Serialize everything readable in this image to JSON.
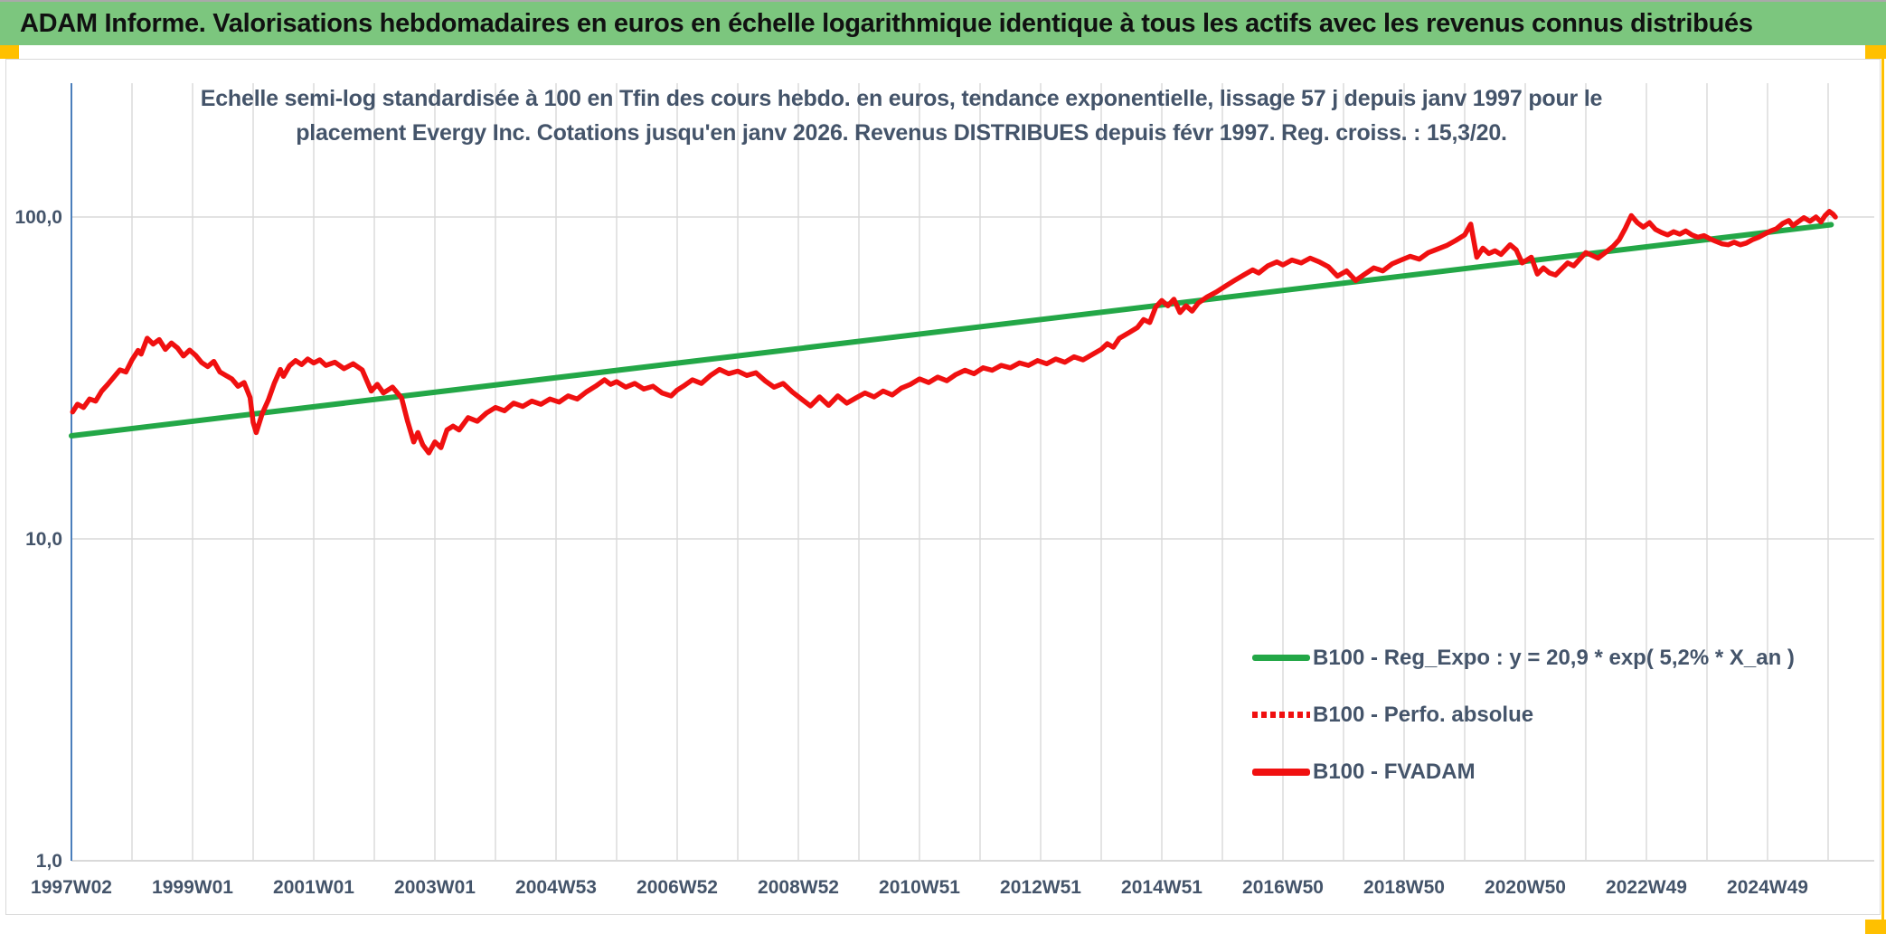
{
  "header": {
    "title": "ADAM Informe. Valorisations hebdomadaires en euros en échelle logarithmique identique à tous les actifs avec les revenus connus distribués",
    "bg_color": "#7cc67e",
    "accent_color": "#FFC000"
  },
  "chart": {
    "title_line1": "Echelle semi-log standardisée à 100 en Tfin des cours hebdo. en euros, tendance exponentielle, lissage 57 j depuis janv 1997 pour le",
    "title_line2": "placement Evergy Inc. Cotations jusqu'en janv 2026. Revenus DISTRIBUES depuis févr 1997. Reg. croiss. : 15,3/20.",
    "text_color": "#44546A",
    "axis_line_color": "#4a7ebb",
    "gridline_color": "#dcdcdc"
  },
  "legend": [
    {
      "label": "B100 - Reg_Expo : y = 20,9 * exp( 5,2% *  X_an )",
      "swatch": "green-solid"
    },
    {
      "label": "B100 - Perfo. absolue",
      "swatch": "red-dotted"
    },
    {
      "label": "B100 - FVADAM",
      "swatch": "red-solid"
    }
  ],
  "chart_data": {
    "type": "line",
    "title": "Echelle semi-log standardisée à 100 en Tfin des cours hebdo. en euros, tendance exponentielle, lissage 57 j depuis janv 1997 pour le placement Evergy Inc. Cotations jusqu'en janv 2026. Revenus DISTRIBUES depuis févr 1997. Reg. croiss. : 15,3/20.",
    "y_axis": {
      "scale": "log10",
      "tick_labels": [
        "100,0",
        "10,0",
        "1,0"
      ],
      "tick_values": [
        100,
        10,
        1
      ],
      "range": [
        1,
        250
      ],
      "grid": true
    },
    "x_axis": {
      "unit": "ISO week (yearWweek)",
      "tick_labels": [
        "1997W02",
        "1999W01",
        "2001W01",
        "2003W01",
        "2004W53",
        "2006W52",
        "2008W52",
        "2010W51",
        "2012W51",
        "2014W51",
        "2016W50",
        "2018W50",
        "2020W50",
        "2022W49",
        "2024W49"
      ],
      "tick_years_from_start": [
        0,
        2,
        4,
        6,
        8,
        10,
        12,
        14,
        16,
        18,
        20,
        22,
        24,
        26,
        28
      ],
      "gridline_every_years": 1,
      "range_years": [
        0,
        30
      ]
    },
    "legend_position": "inside-right-bottom",
    "series": [
      {
        "name": "B100 - Reg_Expo : y = 20,9 * exp( 5,2% *  X_an )",
        "type": "exponential_trend",
        "a": 20.9,
        "growth_rate": 0.052,
        "x_start_years": 0,
        "x_end_years": 29.05,
        "color": "#23a747",
        "stroke_width": 6,
        "style": "solid"
      },
      {
        "name": "B100 - Perfo. absolue",
        "type": "line",
        "color": "#f01010",
        "style": "dotted",
        "coincides_with": "B100 - FVADAM"
      },
      {
        "name": "B100 - FVADAM",
        "type": "line",
        "color": "#f01010",
        "stroke_width": 5.5,
        "style": "solid",
        "points_unit": [
          "years_since_1997",
          "indexed_value_base100_at_end"
        ],
        "points": [
          [
            0.02,
            24.8
          ],
          [
            0.1,
            26.2
          ],
          [
            0.2,
            25.6
          ],
          [
            0.3,
            27.2
          ],
          [
            0.4,
            26.8
          ],
          [
            0.5,
            28.8
          ],
          [
            0.6,
            30.2
          ],
          [
            0.7,
            31.8
          ],
          [
            0.8,
            33.5
          ],
          [
            0.9,
            33.0
          ],
          [
            1.0,
            36.0
          ],
          [
            1.1,
            38.5
          ],
          [
            1.15,
            37.5
          ],
          [
            1.25,
            42.0
          ],
          [
            1.35,
            40.3
          ],
          [
            1.45,
            41.6
          ],
          [
            1.55,
            38.8
          ],
          [
            1.65,
            40.6
          ],
          [
            1.75,
            39.2
          ],
          [
            1.85,
            37.0
          ],
          [
            1.95,
            38.6
          ],
          [
            2.05,
            37.2
          ],
          [
            2.15,
            35.3
          ],
          [
            2.25,
            34.3
          ],
          [
            2.35,
            35.6
          ],
          [
            2.45,
            33.0
          ],
          [
            2.55,
            32.2
          ],
          [
            2.65,
            31.4
          ],
          [
            2.75,
            29.8
          ],
          [
            2.85,
            30.6
          ],
          [
            2.95,
            27.5
          ],
          [
            3.0,
            23.0
          ],
          [
            3.05,
            21.4
          ],
          [
            3.15,
            24.5
          ],
          [
            3.25,
            27.0
          ],
          [
            3.35,
            30.5
          ],
          [
            3.45,
            33.6
          ],
          [
            3.5,
            32.0
          ],
          [
            3.6,
            34.5
          ],
          [
            3.7,
            35.8
          ],
          [
            3.8,
            34.8
          ],
          [
            3.9,
            36.2
          ],
          [
            4.0,
            35.2
          ],
          [
            4.1,
            36.0
          ],
          [
            4.2,
            34.6
          ],
          [
            4.35,
            35.4
          ],
          [
            4.5,
            33.8
          ],
          [
            4.65,
            35.0
          ],
          [
            4.8,
            33.5
          ],
          [
            4.95,
            28.8
          ],
          [
            5.05,
            30.2
          ],
          [
            5.15,
            28.4
          ],
          [
            5.3,
            29.6
          ],
          [
            5.45,
            27.4
          ],
          [
            5.55,
            23.2
          ],
          [
            5.65,
            20.0
          ],
          [
            5.72,
            21.4
          ],
          [
            5.8,
            19.6
          ],
          [
            5.9,
            18.5
          ],
          [
            6.0,
            20.0
          ],
          [
            6.1,
            19.2
          ],
          [
            6.2,
            21.8
          ],
          [
            6.3,
            22.4
          ],
          [
            6.4,
            21.8
          ],
          [
            6.55,
            23.8
          ],
          [
            6.7,
            23.2
          ],
          [
            6.85,
            24.6
          ],
          [
            7.0,
            25.6
          ],
          [
            7.15,
            25.0
          ],
          [
            7.3,
            26.4
          ],
          [
            7.45,
            25.8
          ],
          [
            7.6,
            26.8
          ],
          [
            7.75,
            26.2
          ],
          [
            7.9,
            27.2
          ],
          [
            8.05,
            26.6
          ],
          [
            8.2,
            27.8
          ],
          [
            8.35,
            27.2
          ],
          [
            8.5,
            28.6
          ],
          [
            8.65,
            29.8
          ],
          [
            8.8,
            31.2
          ],
          [
            8.9,
            30.2
          ],
          [
            9.0,
            30.8
          ],
          [
            9.15,
            29.6
          ],
          [
            9.3,
            30.4
          ],
          [
            9.45,
            29.2
          ],
          [
            9.6,
            29.8
          ],
          [
            9.75,
            28.4
          ],
          [
            9.9,
            27.8
          ],
          [
            10.0,
            29.0
          ],
          [
            10.1,
            29.8
          ],
          [
            10.25,
            31.2
          ],
          [
            10.4,
            30.4
          ],
          [
            10.55,
            32.2
          ],
          [
            10.7,
            33.6
          ],
          [
            10.85,
            32.6
          ],
          [
            11.0,
            33.2
          ],
          [
            11.15,
            32.2
          ],
          [
            11.3,
            32.8
          ],
          [
            11.45,
            31.0
          ],
          [
            11.6,
            29.6
          ],
          [
            11.75,
            30.4
          ],
          [
            11.9,
            28.6
          ],
          [
            12.05,
            27.2
          ],
          [
            12.2,
            25.9
          ],
          [
            12.35,
            27.6
          ],
          [
            12.5,
            26.0
          ],
          [
            12.65,
            27.8
          ],
          [
            12.8,
            26.4
          ],
          [
            12.95,
            27.4
          ],
          [
            13.1,
            28.4
          ],
          [
            13.25,
            27.6
          ],
          [
            13.4,
            28.8
          ],
          [
            13.55,
            28.0
          ],
          [
            13.7,
            29.4
          ],
          [
            13.85,
            30.2
          ],
          [
            14.0,
            31.4
          ],
          [
            14.15,
            30.6
          ],
          [
            14.3,
            31.8
          ],
          [
            14.45,
            31.0
          ],
          [
            14.6,
            32.4
          ],
          [
            14.75,
            33.4
          ],
          [
            14.9,
            32.6
          ],
          [
            15.05,
            34.0
          ],
          [
            15.2,
            33.4
          ],
          [
            15.35,
            34.6
          ],
          [
            15.5,
            34.0
          ],
          [
            15.65,
            35.2
          ],
          [
            15.8,
            34.6
          ],
          [
            15.95,
            35.8
          ],
          [
            16.1,
            35.0
          ],
          [
            16.25,
            36.2
          ],
          [
            16.4,
            35.4
          ],
          [
            16.55,
            36.8
          ],
          [
            16.7,
            36.0
          ],
          [
            16.85,
            37.4
          ],
          [
            17.0,
            38.8
          ],
          [
            17.1,
            40.4
          ],
          [
            17.2,
            39.4
          ],
          [
            17.3,
            42.0
          ],
          [
            17.45,
            43.6
          ],
          [
            17.6,
            45.4
          ],
          [
            17.7,
            48.0
          ],
          [
            17.8,
            47.0
          ],
          [
            17.9,
            52.5
          ],
          [
            18.0,
            55.0
          ],
          [
            18.1,
            53.0
          ],
          [
            18.2,
            55.5
          ],
          [
            18.3,
            50.5
          ],
          [
            18.4,
            53.0
          ],
          [
            18.5,
            51.0
          ],
          [
            18.6,
            54.0
          ],
          [
            18.75,
            56.5
          ],
          [
            18.9,
            58.5
          ],
          [
            19.05,
            61.0
          ],
          [
            19.2,
            63.5
          ],
          [
            19.35,
            66.0
          ],
          [
            19.5,
            68.5
          ],
          [
            19.6,
            67.0
          ],
          [
            19.75,
            70.5
          ],
          [
            19.9,
            72.5
          ],
          [
            20.0,
            71.0
          ],
          [
            20.15,
            73.5
          ],
          [
            20.3,
            72.0
          ],
          [
            20.45,
            74.5
          ],
          [
            20.6,
            72.5
          ],
          [
            20.75,
            70.0
          ],
          [
            20.9,
            65.5
          ],
          [
            21.05,
            68.0
          ],
          [
            21.2,
            63.5
          ],
          [
            21.35,
            66.5
          ],
          [
            21.5,
            69.5
          ],
          [
            21.65,
            68.0
          ],
          [
            21.8,
            71.5
          ],
          [
            21.95,
            73.5
          ],
          [
            22.1,
            75.5
          ],
          [
            22.25,
            74.0
          ],
          [
            22.4,
            77.5
          ],
          [
            22.55,
            79.5
          ],
          [
            22.7,
            81.5
          ],
          [
            22.85,
            84.5
          ],
          [
            23.0,
            88.0
          ],
          [
            23.1,
            95.0
          ],
          [
            23.2,
            75.0
          ],
          [
            23.3,
            80.0
          ],
          [
            23.4,
            77.0
          ],
          [
            23.5,
            78.5
          ],
          [
            23.6,
            76.5
          ],
          [
            23.75,
            82.0
          ],
          [
            23.85,
            79.0
          ],
          [
            23.95,
            72.0
          ],
          [
            24.1,
            75.0
          ],
          [
            24.2,
            66.5
          ],
          [
            24.3,
            69.5
          ],
          [
            24.4,
            67.0
          ],
          [
            24.5,
            66.0
          ],
          [
            24.6,
            69.0
          ],
          [
            24.7,
            72.0
          ],
          [
            24.8,
            70.5
          ],
          [
            24.9,
            74.0
          ],
          [
            25.0,
            77.5
          ],
          [
            25.1,
            76.0
          ],
          [
            25.2,
            74.5
          ],
          [
            25.3,
            77.0
          ],
          [
            25.45,
            81.0
          ],
          [
            25.55,
            85.0
          ],
          [
            25.65,
            92.0
          ],
          [
            25.75,
            101.0
          ],
          [
            25.85,
            96.0
          ],
          [
            25.95,
            93.0
          ],
          [
            26.05,
            96.0
          ],
          [
            26.15,
            91.5
          ],
          [
            26.25,
            89.5
          ],
          [
            26.35,
            88.0
          ],
          [
            26.45,
            90.0
          ],
          [
            26.55,
            88.5
          ],
          [
            26.65,
            90.5
          ],
          [
            26.75,
            88.0
          ],
          [
            26.85,
            86.5
          ],
          [
            26.95,
            87.5
          ],
          [
            27.05,
            85.5
          ],
          [
            27.15,
            84.0
          ],
          [
            27.25,
            82.5
          ],
          [
            27.35,
            82.0
          ],
          [
            27.45,
            83.5
          ],
          [
            27.55,
            82.0
          ],
          [
            27.65,
            83.0
          ],
          [
            27.75,
            85.0
          ],
          [
            27.85,
            86.5
          ],
          [
            27.95,
            88.5
          ],
          [
            28.05,
            90.5
          ],
          [
            28.15,
            92.0
          ],
          [
            28.25,
            95.5
          ],
          [
            28.35,
            97.5
          ],
          [
            28.42,
            94.0
          ],
          [
            28.5,
            96.5
          ],
          [
            28.6,
            99.5
          ],
          [
            28.7,
            97.0
          ],
          [
            28.8,
            100.0
          ],
          [
            28.88,
            96.5
          ],
          [
            28.95,
            101.0
          ],
          [
            29.02,
            104.0
          ],
          [
            29.08,
            102.0
          ],
          [
            29.12,
            100.0
          ]
        ]
      }
    ]
  }
}
